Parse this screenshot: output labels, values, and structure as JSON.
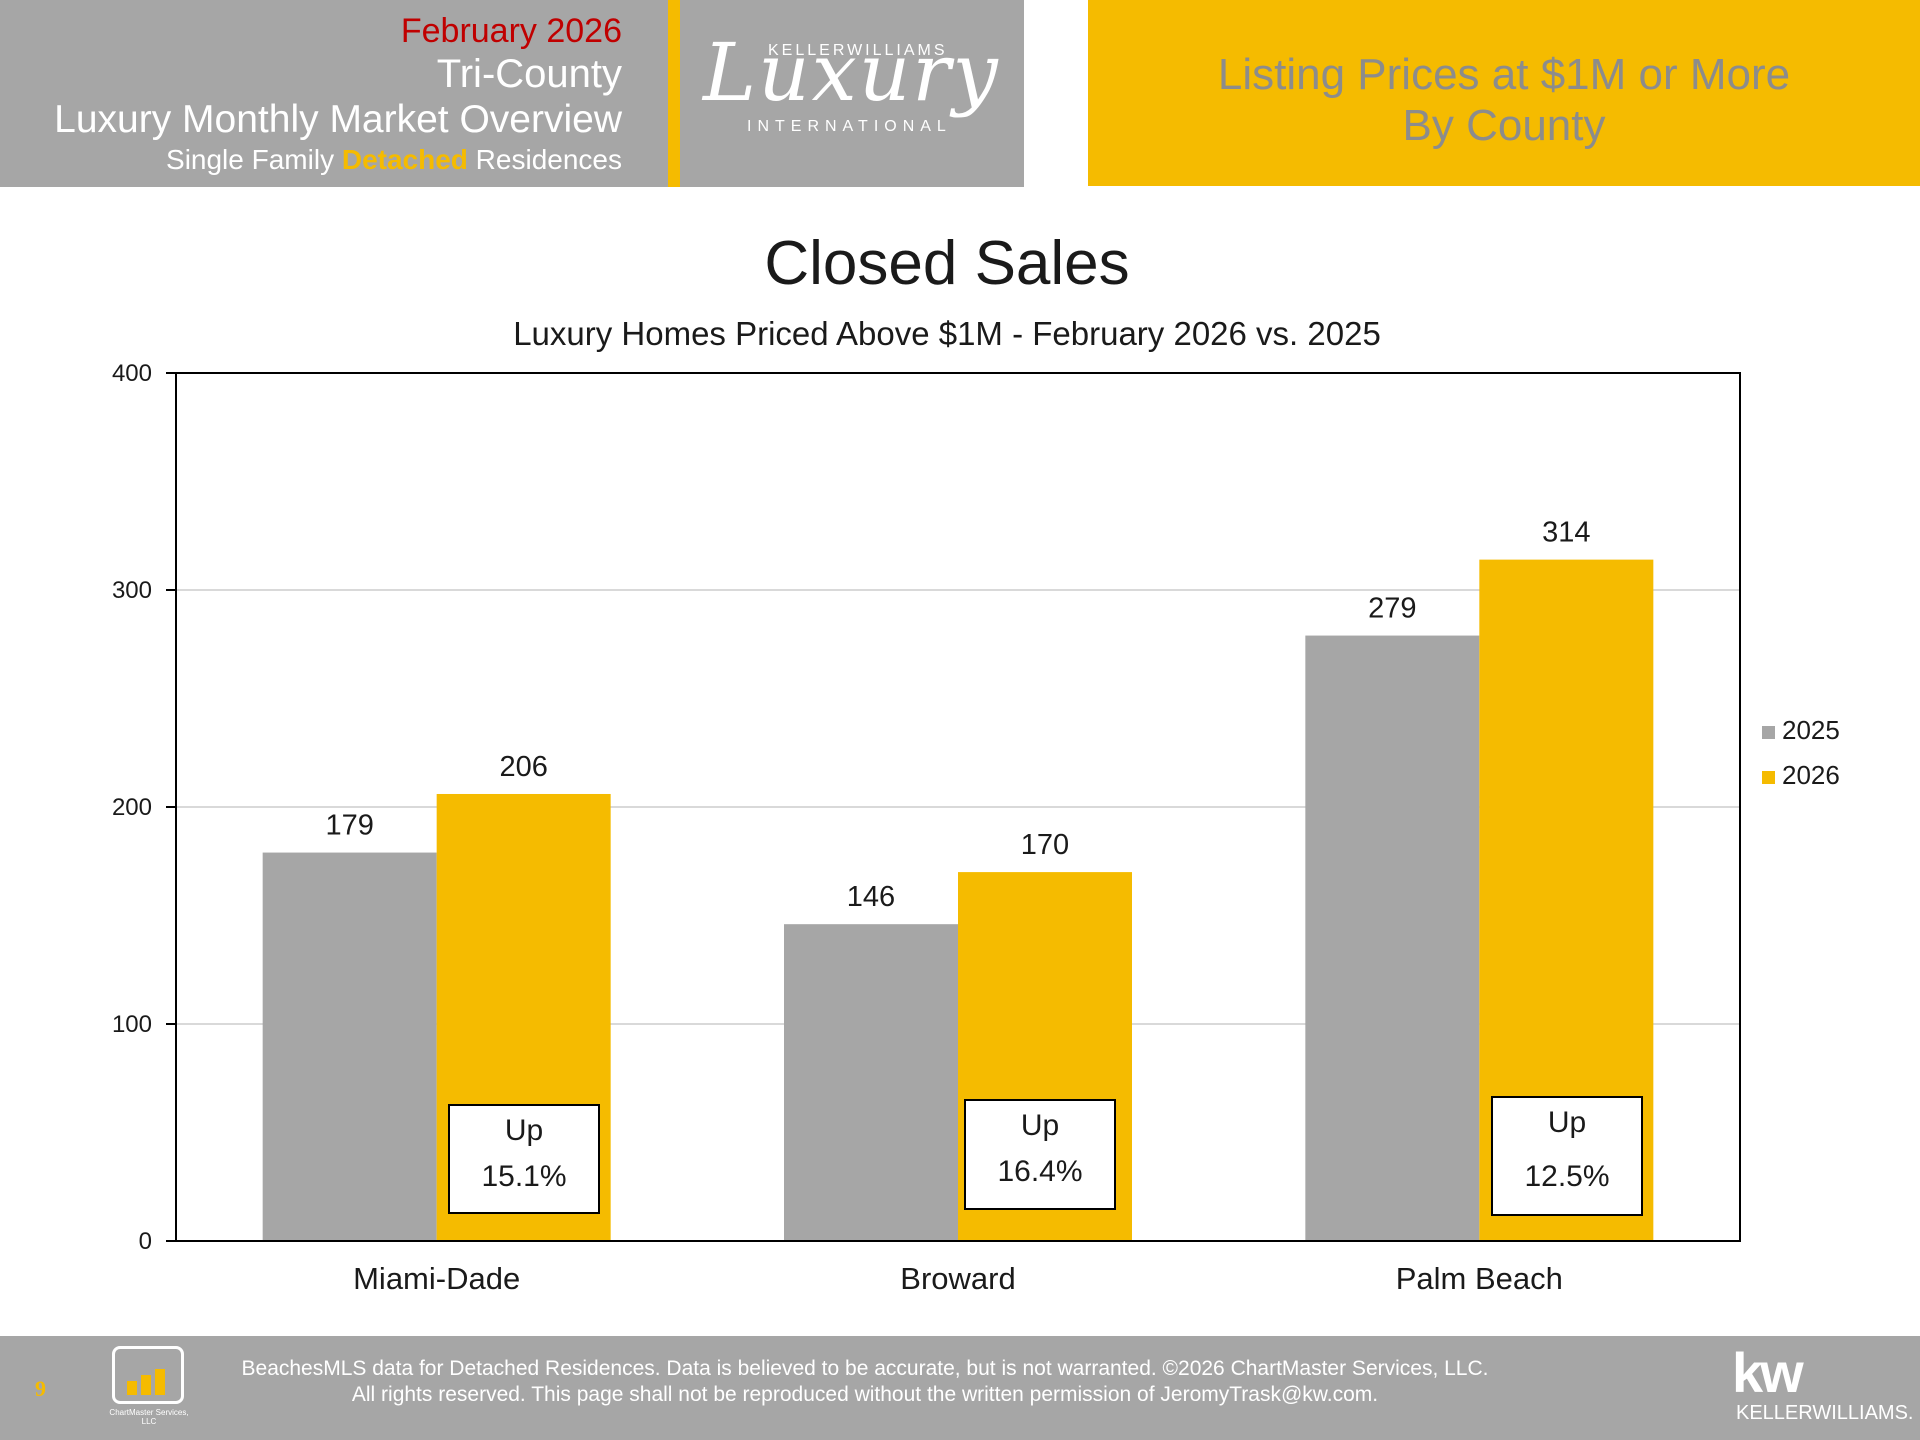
{
  "header": {
    "date": "February 2026",
    "region": "Tri-County",
    "overview": "Luxury Monthly Market Overview",
    "subtitle_pre": "Single Family ",
    "subtitle_highlight": "Detached",
    "subtitle_post": " Residences",
    "brand_top": "KELLERWILLIAMS",
    "brand_script": "Luxury",
    "brand_bottom": "INTERNATIONAL",
    "section_title_1": "Listing Prices at $1M or More",
    "section_title_2": "By County"
  },
  "colors": {
    "series_2025": "#a6a6a6",
    "series_2026": "#f5bb00",
    "header_gray": "#a6a6a6",
    "accent_red": "#c00000"
  },
  "chart_data": {
    "type": "bar",
    "title": "Closed Sales",
    "subtitle": "Luxury Homes Priced Above $1M - February 2026 vs. 2025",
    "categories": [
      "Miami-Dade",
      "Broward",
      "Palm Beach"
    ],
    "series": [
      {
        "name": "2025",
        "values": [
          179,
          146,
          279
        ]
      },
      {
        "name": "2026",
        "values": [
          206,
          170,
          314
        ]
      }
    ],
    "ylim": [
      0,
      400
    ],
    "yticks": [
      "0",
      "100",
      "200",
      "300",
      "400"
    ],
    "grid": true,
    "legend": "right",
    "changes": [
      {
        "direction": "Up",
        "pct": "15.1%"
      },
      {
        "direction": "Up",
        "pct": "16.4%"
      },
      {
        "direction": "Up",
        "pct": "12.5%"
      }
    ]
  },
  "footer": {
    "page_number": "9",
    "line1": "BeachesMLS data for Detached Residences.  Data is believed to be accurate, but is not warranted.   ©2026  ChartMaster Services, LLC.",
    "line2": "All rights reserved. This page shall not be reproduced without the written permission of JeromyTrask@kw.com.",
    "cm_logo_text": "ChartMaster Services, LLC",
    "kw_mark": "kw",
    "kw_text": "KELLERWILLIAMS."
  }
}
